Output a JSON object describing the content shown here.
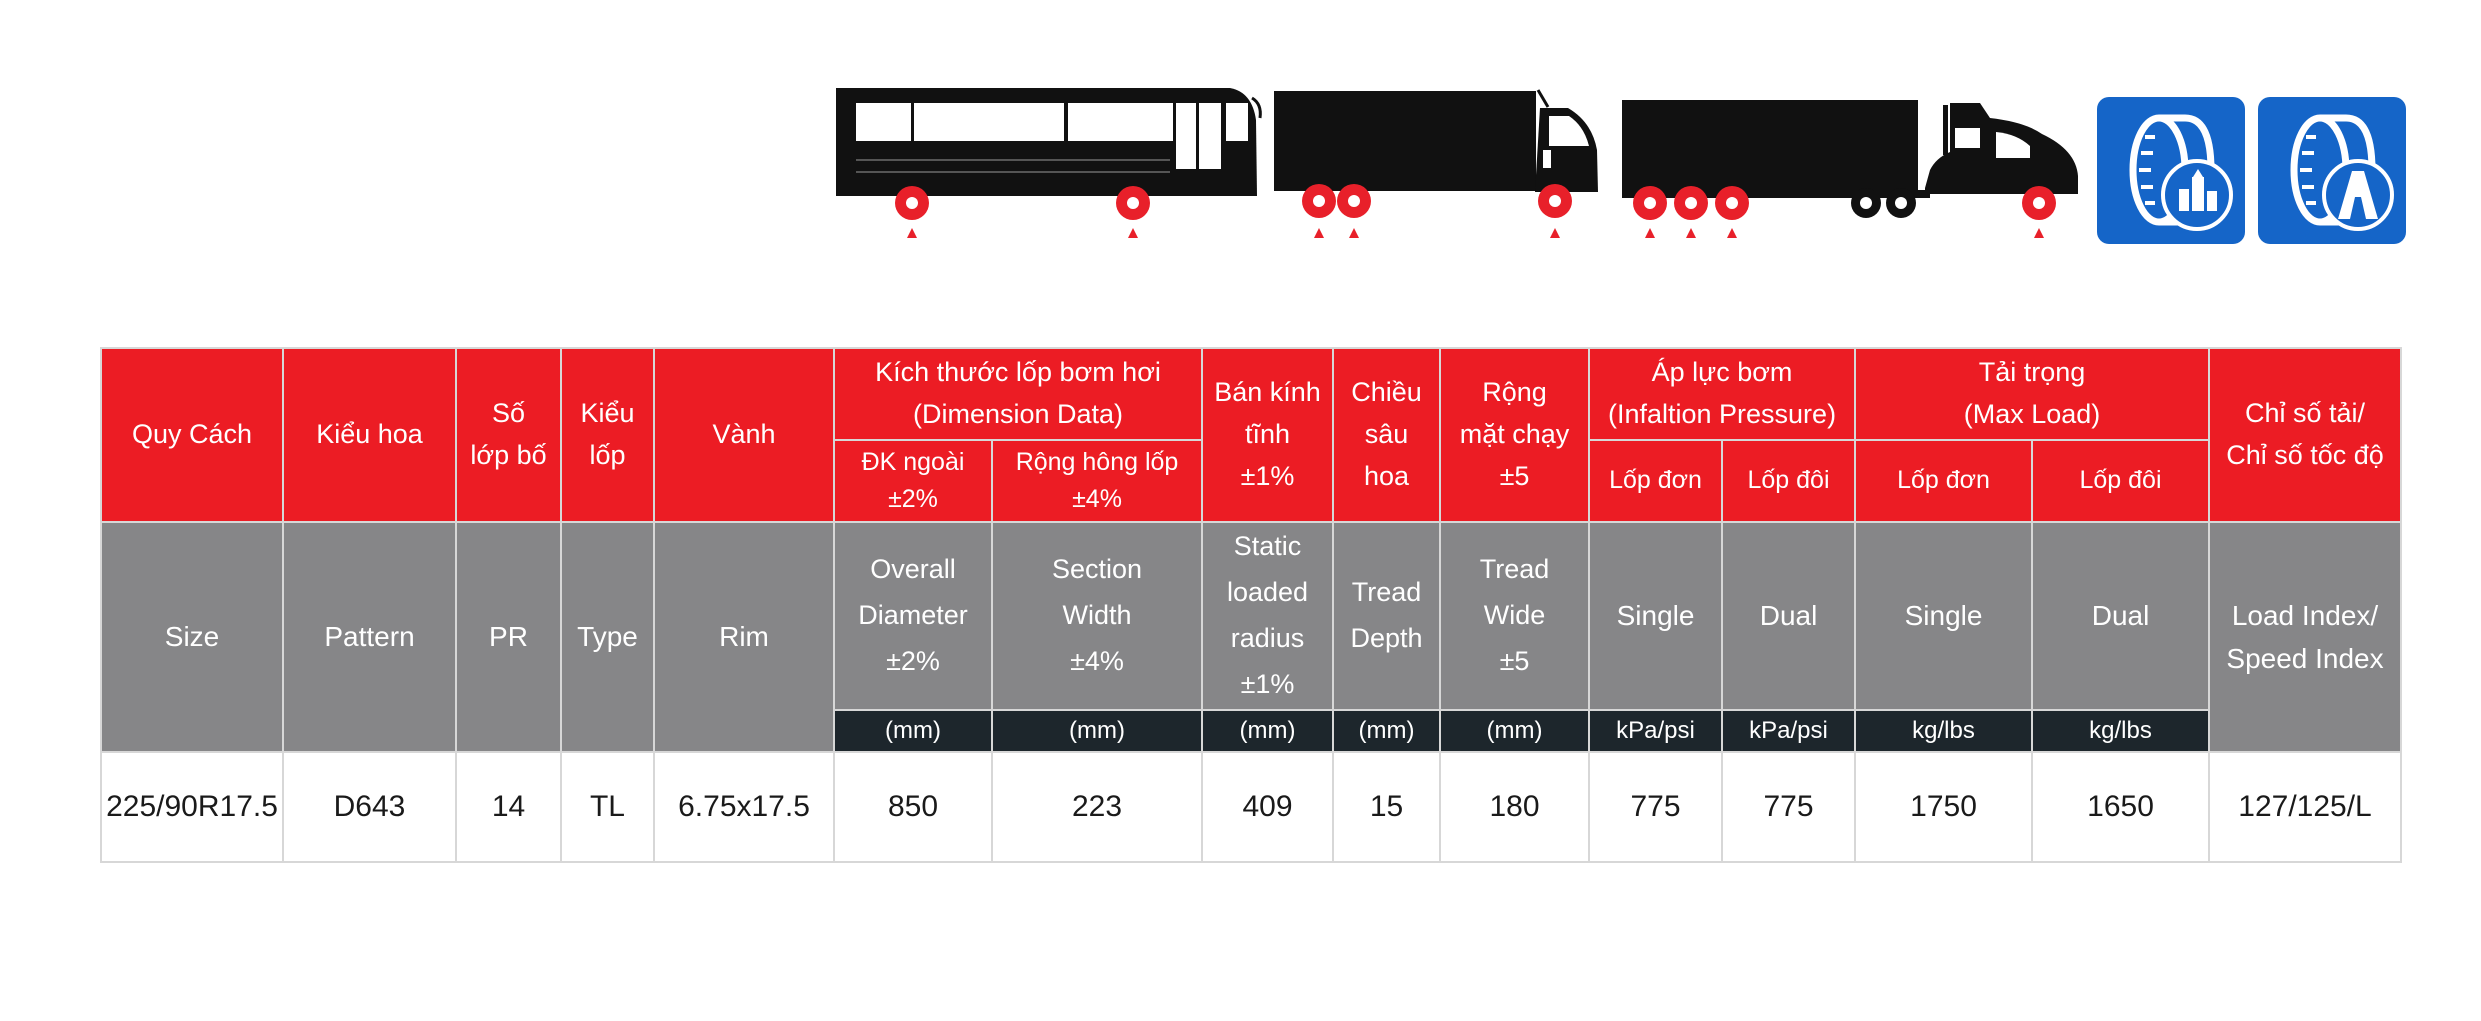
{
  "vehicles": [
    {
      "name": "bus"
    },
    {
      "name": "rigid-truck"
    },
    {
      "name": "semi-trailer-truck"
    }
  ],
  "badges": [
    {
      "name": "urban-road-tire-badge",
      "icon": "tire-with-buildings-icon"
    },
    {
      "name": "highway-tire-badge",
      "icon": "tire-with-highway-icon"
    }
  ],
  "colors": {
    "header_red": "#ec1c24",
    "header_gray": "#868688",
    "unit_dark": "#1d262c",
    "badge_blue": "#1565c8",
    "wheel_marker_red": "#e8202a"
  },
  "table": {
    "vn_headers": {
      "size": "Quy Cách",
      "pattern": "Kiểu hoa",
      "pr": "Số\nlớp bố",
      "type": "Kiểu\nlốp",
      "rim": "Vành",
      "dimension_group": "Kích thước lốp bơm hơi\n(Dimension Data)",
      "overall_diameter": "ĐK ngoài\n±2%",
      "section_width": "Rộng hông lốp\n±4%",
      "static_radius": "Bán kính\ntĩnh\n±1%",
      "tread_depth": "Chiều\nsâu\nhoa",
      "tread_width": "Rộng\nmặt chạy\n±5",
      "pressure_group": "Áp lực bơm\n(Infaltion Pressure)",
      "pressure_single": "Lốp đơn",
      "pressure_dual": "Lốp đôi",
      "load_group": "Tải trọng\n(Max Load)",
      "load_single": "Lốp đơn",
      "load_dual": "Lốp đôi",
      "load_speed_index": "Chỉ số tải/\nChỉ số tốc độ"
    },
    "en_headers": {
      "size": "Size",
      "pattern": "Pattern",
      "pr": "PR",
      "type": "Type",
      "rim": "Rim",
      "overall_diameter": "Overall\nDiameter\n±2%",
      "section_width": "Section\nWidth\n±4%",
      "static_radius": "Static\nloaded\nradius\n±1%",
      "tread_depth": "Tread\nDepth",
      "tread_width": "Tread\nWide\n±5",
      "pressure_single": "Single",
      "pressure_dual": "Dual",
      "load_single": "Single",
      "load_dual": "Dual",
      "load_speed_index": "Load Index/\nSpeed Index"
    },
    "units": {
      "overall_diameter": "(mm)",
      "section_width": "(mm)",
      "static_radius": "(mm)",
      "tread_depth": "(mm)",
      "tread_width": "(mm)",
      "pressure_single": "kPa/psi",
      "pressure_dual": "kPa/psi",
      "load_single": "kg/lbs",
      "load_dual": "kg/lbs"
    },
    "rows": [
      {
        "size": "225/90R17.5",
        "pattern": "D643",
        "pr": "14",
        "type": "TL",
        "rim": "6.75x17.5",
        "overall_diameter": "850",
        "section_width": "223",
        "static_radius": "409",
        "tread_depth": "15",
        "tread_width": "180",
        "pressure_single": "775",
        "pressure_dual": "775",
        "load_single": "1750",
        "load_dual": "1650",
        "load_speed_index": "127/125/L"
      }
    ]
  }
}
